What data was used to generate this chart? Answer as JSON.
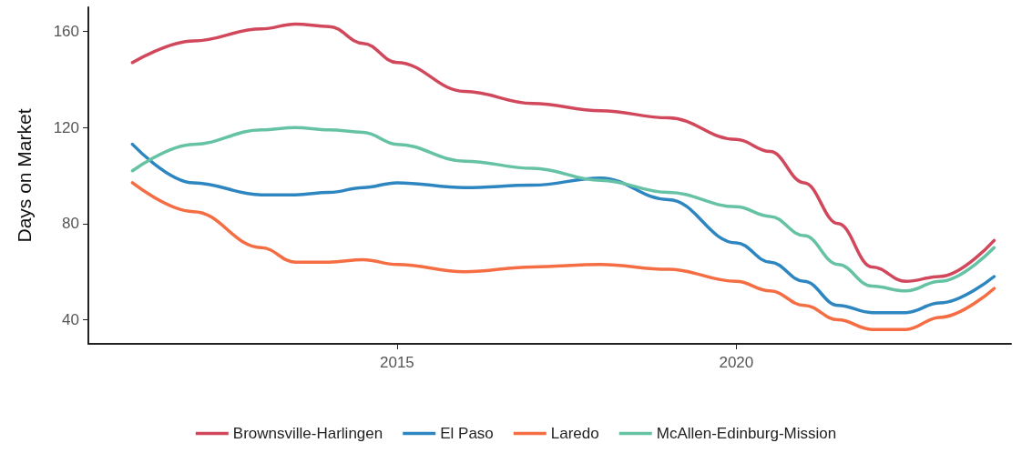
{
  "chart_data": {
    "type": "line",
    "ylabel": "Days on Market",
    "x": [
      2011.1,
      2012,
      2013,
      2013.5,
      2014,
      2014.5,
      2015,
      2016,
      2017,
      2018,
      2019,
      2020,
      2020.5,
      2021,
      2021.5,
      2022,
      2022.5,
      2023,
      2023.8
    ],
    "series": [
      {
        "name": "Brownsville-Harlingen",
        "color": "#d1475b",
        "values": [
          147,
          156,
          161,
          163,
          162,
          155,
          147,
          135,
          130,
          127,
          124,
          115,
          110,
          97,
          80,
          62,
          56,
          58,
          73
        ]
      },
      {
        "name": "El Paso",
        "color": "#2e86c1",
        "values": [
          113,
          97,
          92,
          92,
          93,
          95,
          97,
          95,
          96,
          99,
          90,
          72,
          64,
          56,
          46,
          43,
          43,
          47,
          58
        ]
      },
      {
        "name": "Laredo",
        "color": "#f46d43",
        "values": [
          97,
          85,
          70,
          64,
          64,
          65,
          63,
          60,
          62,
          63,
          61,
          56,
          52,
          46,
          40,
          36,
          36,
          41,
          53
        ]
      },
      {
        "name": "McAllen-Edinburg-Mission",
        "color": "#66c2a5",
        "values": [
          102,
          113,
          119,
          120,
          119,
          118,
          113,
          106,
          103,
          98,
          93,
          87,
          83,
          75,
          63,
          54,
          52,
          56,
          70
        ]
      }
    ],
    "xlim": [
      2010.45,
      2024.05
    ],
    "xticks": [
      2015,
      2020
    ],
    "ylim": [
      30,
      170
    ],
    "yticks": [
      40,
      80,
      120,
      160
    ],
    "grid": false,
    "legend": "bottom",
    "marker": "none",
    "line_style": "solid"
  }
}
